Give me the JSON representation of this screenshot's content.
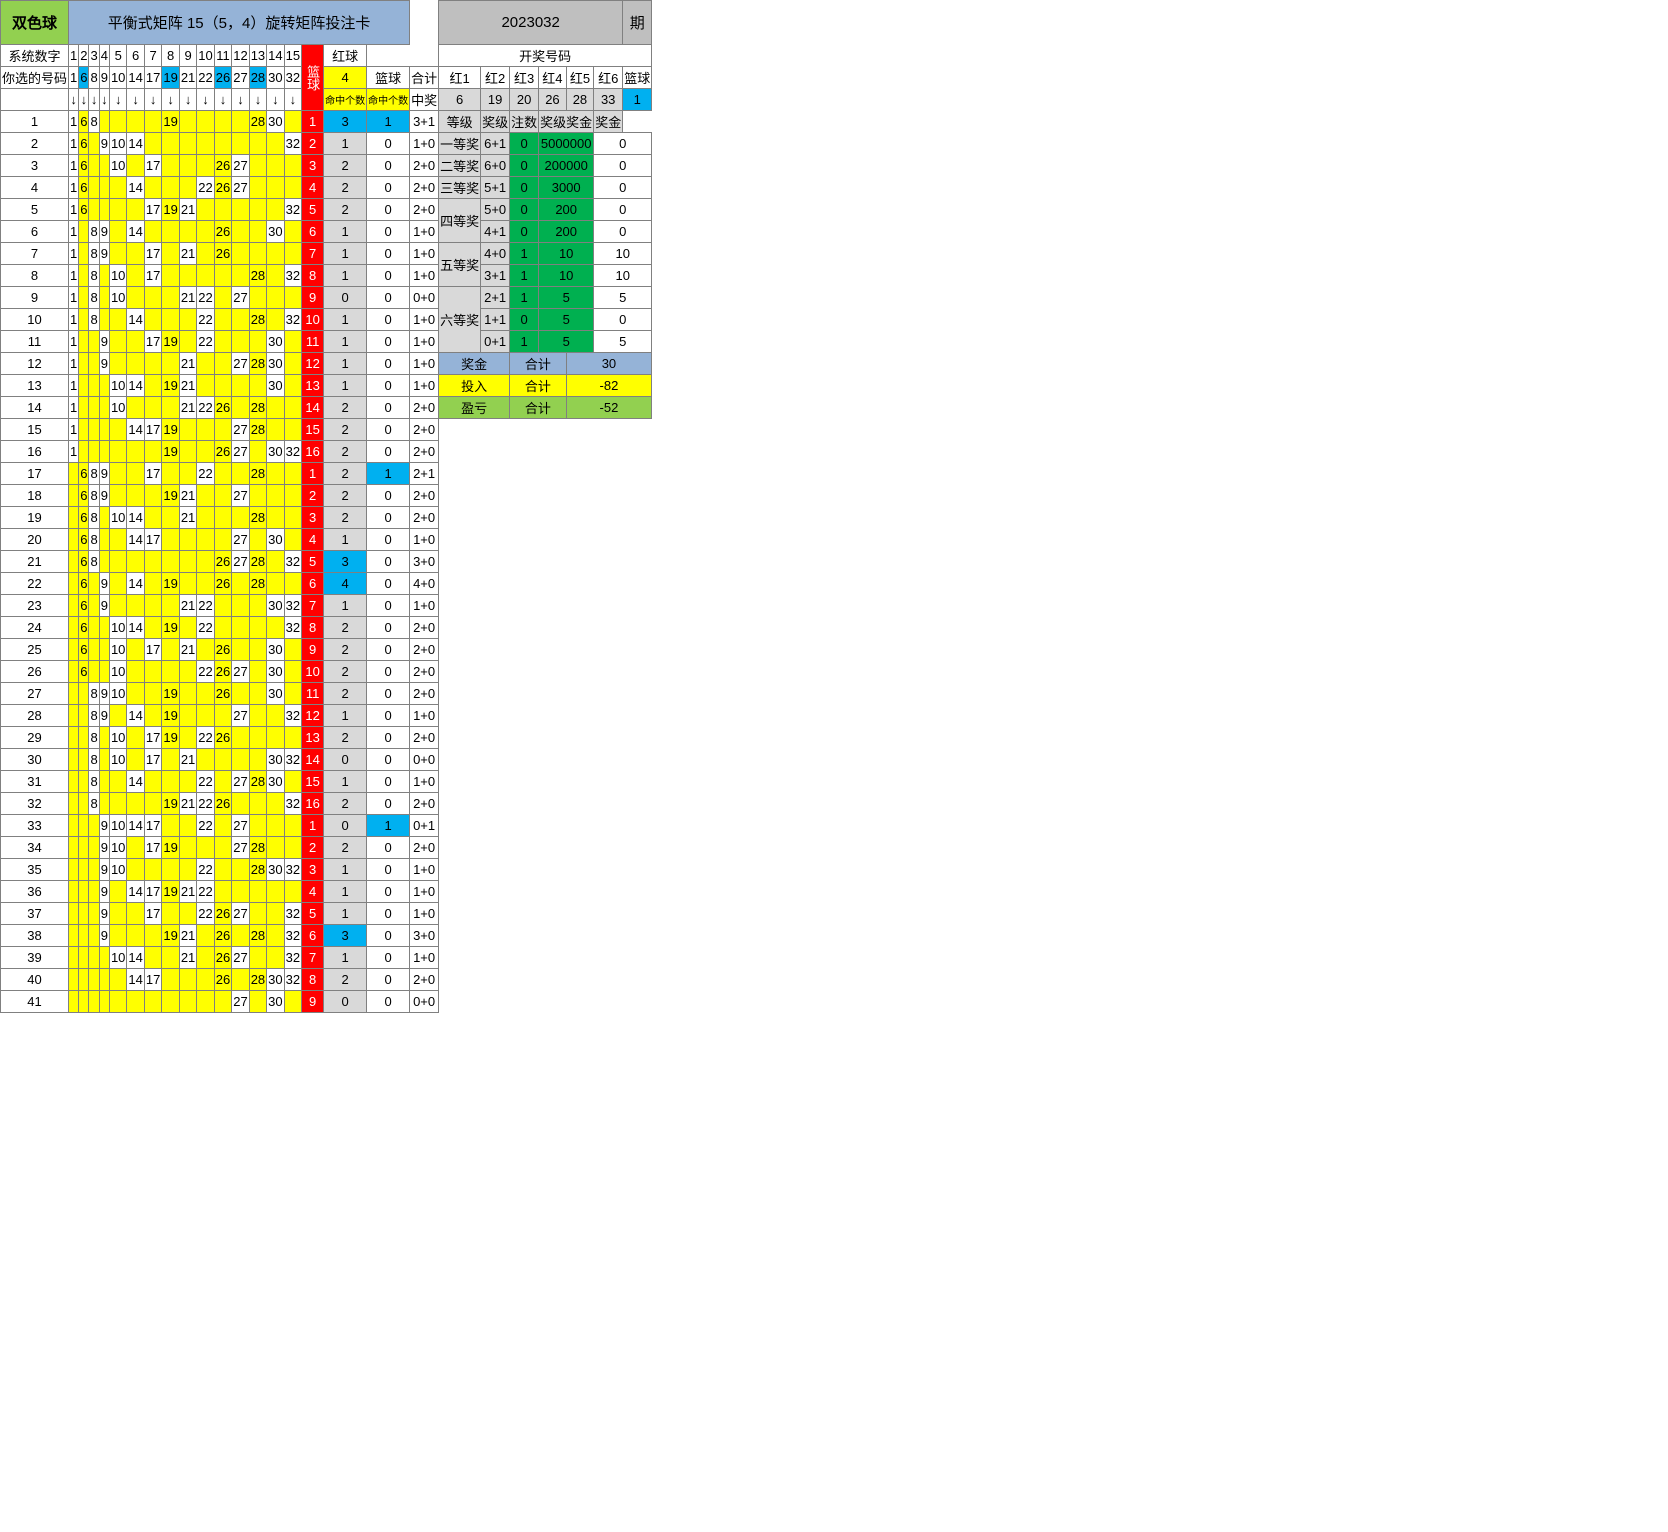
{
  "meta": {
    "corner_label": "双色球",
    "main_title": "平衡式矩阵 15（5，4）旋转矩阵投注卡",
    "period": "2023032",
    "period_suffix": "期"
  },
  "colors": {
    "title_green": "#92d050",
    "title_blue": "#95b3d7",
    "title_gray": "#bfbfbf",
    "hdr_gray": "#d9d9d9",
    "blue_cell": "#00b0f0",
    "yellow": "#ffff00",
    "red": "#ff0000",
    "green_dark": "#00b050",
    "green_light": "#92d050",
    "border": "#808080"
  },
  "header_rows": {
    "sys_label": "系统数字",
    "sys_nums": [
      "1",
      "2",
      "3",
      "4",
      "5",
      "6",
      "7",
      "8",
      "9",
      "10",
      "11",
      "12",
      "13",
      "14",
      "15"
    ],
    "lanqiu": "篮球",
    "hongqiu": "红球",
    "kaijiang_label": "开奖号码",
    "sel_label": "你选的号码",
    "sel_nums": [
      "1",
      "6",
      "8",
      "9",
      "10",
      "14",
      "17",
      "19",
      "21",
      "22",
      "26",
      "27",
      "28",
      "30",
      "32"
    ],
    "sel_highlight_idx": [
      1,
      7,
      10,
      12
    ],
    "sel_lanqiu": "4",
    "mingzhong_red": "命中个数",
    "mingzhong_blue": "命中个数",
    "lanqiu2": "篮球",
    "heji": "合计",
    "red_labels": [
      "红1",
      "红2",
      "红3",
      "红4",
      "红5",
      "红6",
      "篮球"
    ],
    "arrow": "↓",
    "zhongjiang": "中奖",
    "winning_numbers": [
      "6",
      "19",
      "20",
      "26",
      "28",
      "33",
      "1"
    ]
  },
  "matrix": {
    "chosen": [
      1,
      6,
      8,
      9,
      10,
      14,
      17,
      19,
      21,
      22,
      26,
      27,
      28,
      30,
      32
    ],
    "rows": [
      {
        "n": 1,
        "p": [
          1,
          6,
          8,
          19,
          28,
          30
        ],
        "b": 1,
        "r": 3,
        "l": 1,
        "s": "3+1"
      },
      {
        "n": 2,
        "p": [
          1,
          6,
          9,
          10,
          14,
          32
        ],
        "b": 2,
        "r": 1,
        "l": 0,
        "s": "1+0"
      },
      {
        "n": 3,
        "p": [
          1,
          6,
          10,
          17,
          26,
          27
        ],
        "b": 3,
        "r": 2,
        "l": 0,
        "s": "2+0"
      },
      {
        "n": 4,
        "p": [
          1,
          6,
          14,
          22,
          26,
          27
        ],
        "b": 4,
        "r": 2,
        "l": 0,
        "s": "2+0"
      },
      {
        "n": 5,
        "p": [
          1,
          6,
          17,
          19,
          21,
          32
        ],
        "b": 5,
        "r": 2,
        "l": 0,
        "s": "2+0"
      },
      {
        "n": 6,
        "p": [
          1,
          8,
          9,
          14,
          26,
          30
        ],
        "b": 6,
        "r": 1,
        "l": 0,
        "s": "1+0"
      },
      {
        "n": 7,
        "p": [
          1,
          8,
          9,
          17,
          21,
          26
        ],
        "b": 7,
        "r": 1,
        "l": 0,
        "s": "1+0"
      },
      {
        "n": 8,
        "p": [
          1,
          8,
          10,
          17,
          28,
          32
        ],
        "b": 8,
        "r": 1,
        "l": 0,
        "s": "1+0"
      },
      {
        "n": 9,
        "p": [
          1,
          8,
          10,
          21,
          22,
          27
        ],
        "b": 9,
        "r": 0,
        "l": 0,
        "s": "0+0"
      },
      {
        "n": 10,
        "p": [
          1,
          8,
          14,
          22,
          28,
          32
        ],
        "b": 10,
        "r": 1,
        "l": 0,
        "s": "1+0"
      },
      {
        "n": 11,
        "p": [
          1,
          9,
          17,
          19,
          22,
          30
        ],
        "b": 11,
        "r": 1,
        "l": 0,
        "s": "1+0"
      },
      {
        "n": 12,
        "p": [
          1,
          9,
          21,
          27,
          28,
          30
        ],
        "b": 12,
        "r": 1,
        "l": 0,
        "s": "1+0"
      },
      {
        "n": 13,
        "p": [
          1,
          10,
          14,
          19,
          21,
          30
        ],
        "b": 13,
        "r": 1,
        "l": 0,
        "s": "1+0"
      },
      {
        "n": 14,
        "p": [
          1,
          10,
          21,
          22,
          26,
          28
        ],
        "b": 14,
        "r": 2,
        "l": 0,
        "s": "2+0"
      },
      {
        "n": 15,
        "p": [
          1,
          14,
          17,
          19,
          27,
          28
        ],
        "b": 15,
        "r": 2,
        "l": 0,
        "s": "2+0"
      },
      {
        "n": 16,
        "p": [
          1,
          19,
          26,
          27,
          30,
          32
        ],
        "b": 16,
        "r": 2,
        "l": 0,
        "s": "2+0"
      },
      {
        "n": 17,
        "p": [
          6,
          8,
          9,
          17,
          22,
          28
        ],
        "b": 1,
        "r": 2,
        "l": 1,
        "s": "2+1"
      },
      {
        "n": 18,
        "p": [
          6,
          8,
          9,
          19,
          21,
          27
        ],
        "b": 2,
        "r": 2,
        "l": 0,
        "s": "2+0"
      },
      {
        "n": 19,
        "p": [
          6,
          8,
          10,
          14,
          21,
          28
        ],
        "b": 3,
        "r": 2,
        "l": 0,
        "s": "2+0"
      },
      {
        "n": 20,
        "p": [
          6,
          8,
          14,
          17,
          27,
          30
        ],
        "b": 4,
        "r": 1,
        "l": 0,
        "s": "1+0"
      },
      {
        "n": 21,
        "p": [
          6,
          8,
          26,
          27,
          28,
          32
        ],
        "b": 5,
        "r": 3,
        "l": 0,
        "s": "3+0"
      },
      {
        "n": 22,
        "p": [
          6,
          9,
          14,
          19,
          26,
          28
        ],
        "b": 6,
        "r": 4,
        "l": 0,
        "s": "4+0"
      },
      {
        "n": 23,
        "p": [
          6,
          9,
          21,
          22,
          30,
          32
        ],
        "b": 7,
        "r": 1,
        "l": 0,
        "s": "1+0"
      },
      {
        "n": 24,
        "p": [
          6,
          10,
          14,
          19,
          22,
          32
        ],
        "b": 8,
        "r": 2,
        "l": 0,
        "s": "2+0"
      },
      {
        "n": 25,
        "p": [
          6,
          10,
          17,
          21,
          26,
          30
        ],
        "b": 9,
        "r": 2,
        "l": 0,
        "s": "2+0"
      },
      {
        "n": 26,
        "p": [
          6,
          10,
          22,
          26,
          27,
          30
        ],
        "b": 10,
        "r": 2,
        "l": 0,
        "s": "2+0"
      },
      {
        "n": 27,
        "p": [
          8,
          9,
          10,
          19,
          26,
          30
        ],
        "b": 11,
        "r": 2,
        "l": 0,
        "s": "2+0"
      },
      {
        "n": 28,
        "p": [
          8,
          9,
          14,
          19,
          27,
          32
        ],
        "b": 12,
        "r": 1,
        "l": 0,
        "s": "1+0"
      },
      {
        "n": 29,
        "p": [
          8,
          10,
          17,
          19,
          22,
          26
        ],
        "b": 13,
        "r": 2,
        "l": 0,
        "s": "2+0"
      },
      {
        "n": 30,
        "p": [
          8,
          10,
          17,
          21,
          30,
          32
        ],
        "b": 14,
        "r": 0,
        "l": 0,
        "s": "0+0"
      },
      {
        "n": 31,
        "p": [
          8,
          14,
          22,
          27,
          28,
          30
        ],
        "b": 15,
        "r": 1,
        "l": 0,
        "s": "1+0"
      },
      {
        "n": 32,
        "p": [
          8,
          19,
          21,
          22,
          26,
          32
        ],
        "b": 16,
        "r": 2,
        "l": 0,
        "s": "2+0"
      },
      {
        "n": 33,
        "p": [
          9,
          10,
          14,
          17,
          22,
          27
        ],
        "b": 1,
        "r": 0,
        "l": 1,
        "s": "0+1"
      },
      {
        "n": 34,
        "p": [
          9,
          10,
          17,
          19,
          27,
          28
        ],
        "b": 2,
        "r": 2,
        "l": 0,
        "s": "2+0"
      },
      {
        "n": 35,
        "p": [
          9,
          10,
          22,
          28,
          30,
          32
        ],
        "b": 3,
        "r": 1,
        "l": 0,
        "s": "1+0"
      },
      {
        "n": 36,
        "p": [
          9,
          14,
          17,
          19,
          21,
          22
        ],
        "b": 4,
        "r": 1,
        "l": 0,
        "s": "1+0"
      },
      {
        "n": 37,
        "p": [
          9,
          17,
          22,
          26,
          27,
          32
        ],
        "b": 5,
        "r": 1,
        "l": 0,
        "s": "1+0"
      },
      {
        "n": 38,
        "p": [
          9,
          19,
          21,
          26,
          28,
          32
        ],
        "b": 6,
        "r": 3,
        "l": 0,
        "s": "3+0"
      },
      {
        "n": 39,
        "p": [
          10,
          14,
          21,
          26,
          27,
          32
        ],
        "b": 7,
        "r": 1,
        "l": 0,
        "s": "1+0"
      },
      {
        "n": 40,
        "p": [
          14,
          17,
          26,
          28,
          30,
          32
        ],
        "b": 8,
        "r": 2,
        "l": 0,
        "s": "2+0"
      },
      {
        "n": 41,
        "p": [
          27,
          30
        ],
        "b": 9,
        "r": 0,
        "l": 0,
        "s": "0+0"
      }
    ],
    "red_highlight_threshold": 3
  },
  "prize_table": {
    "hdr": [
      "等级",
      "奖级",
      "注数",
      "奖级奖金",
      "奖金"
    ],
    "rows": [
      {
        "lvl": "一等奖",
        "grade": "6+1",
        "cnt": "0",
        "prize": "5000000",
        "money": "0",
        "span": 1
      },
      {
        "lvl": "二等奖",
        "grade": "6+0",
        "cnt": "0",
        "prize": "200000",
        "money": "0",
        "span": 1
      },
      {
        "lvl": "三等奖",
        "grade": "5+1",
        "cnt": "0",
        "prize": "3000",
        "money": "0",
        "span": 1
      },
      {
        "lvl": "四等奖",
        "grade": "5+0",
        "cnt": "0",
        "prize": "200",
        "money": "0",
        "span": 2
      },
      {
        "lvl": "",
        "grade": "4+1",
        "cnt": "0",
        "prize": "200",
        "money": "0",
        "span": 0
      },
      {
        "lvl": "五等奖",
        "grade": "4+0",
        "cnt": "1",
        "prize": "10",
        "money": "10",
        "span": 2
      },
      {
        "lvl": "",
        "grade": "3+1",
        "cnt": "1",
        "prize": "10",
        "money": "10",
        "span": 0
      },
      {
        "lvl": "六等奖",
        "grade": "2+1",
        "cnt": "1",
        "prize": "5",
        "money": "5",
        "span": 3
      },
      {
        "lvl": "",
        "grade": "1+1",
        "cnt": "0",
        "prize": "5",
        "money": "0",
        "span": 0
      },
      {
        "lvl": "",
        "grade": "0+1",
        "cnt": "1",
        "prize": "5",
        "money": "5",
        "span": 0
      }
    ],
    "summary": [
      {
        "l": "奖金",
        "m": "合计",
        "v": "30",
        "cls": "blue-light"
      },
      {
        "l": "投入",
        "m": "合计",
        "v": "-82",
        "cls": "yellow"
      },
      {
        "l": "盈亏",
        "m": "合计",
        "v": "-52",
        "cls": "green-light"
      }
    ]
  }
}
